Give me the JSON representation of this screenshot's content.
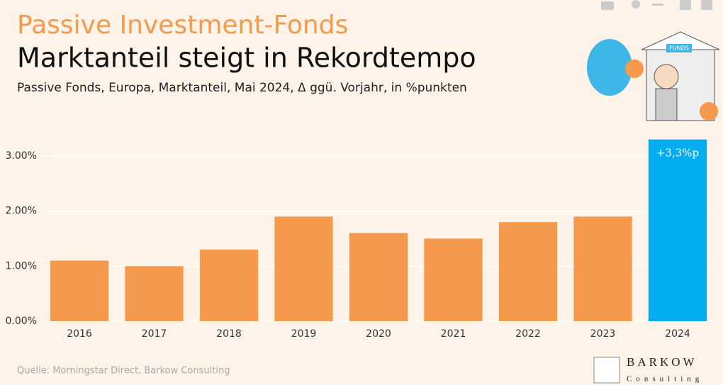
{
  "chart_data": {
    "type": "bar",
    "title": "Passive Investment-Fonds",
    "subtitle": "Marktanteil steigt in Rekordtempo",
    "description": "Passive Fonds, Europa, Marktanteil, Mai 2024, Δ ggü. Vorjahr, in %punkten",
    "source": "Quelle: Morningstar Direct, Barkow Consulting",
    "categories": [
      "2016",
      "2017",
      "2018",
      "2019",
      "2020",
      "2021",
      "2022",
      "2023",
      "2024"
    ],
    "values": [
      1.1,
      1.0,
      1.3,
      1.9,
      1.6,
      1.5,
      1.8,
      1.9,
      3.3
    ],
    "value_labels": [
      null,
      null,
      null,
      null,
      null,
      null,
      null,
      null,
      "+3,3%p"
    ],
    "colors": [
      "#f5994c",
      "#f5994c",
      "#f5994c",
      "#f5994c",
      "#f5994c",
      "#f5994c",
      "#f5994c",
      "#f5994c",
      "#00aeef"
    ],
    "ylim": [
      0,
      3.3
    ],
    "yticks": [
      {
        "value": 0,
        "label": "0.00%"
      },
      {
        "value": 1,
        "label": "1.00%"
      },
      {
        "value": 2,
        "label": "2.00%"
      },
      {
        "value": 3,
        "label": "3.00%"
      }
    ],
    "grid": true
  },
  "logo": {
    "name": "BARKOW",
    "tagline": "Consulting"
  },
  "illustration": {
    "sign": "FUNDS"
  }
}
